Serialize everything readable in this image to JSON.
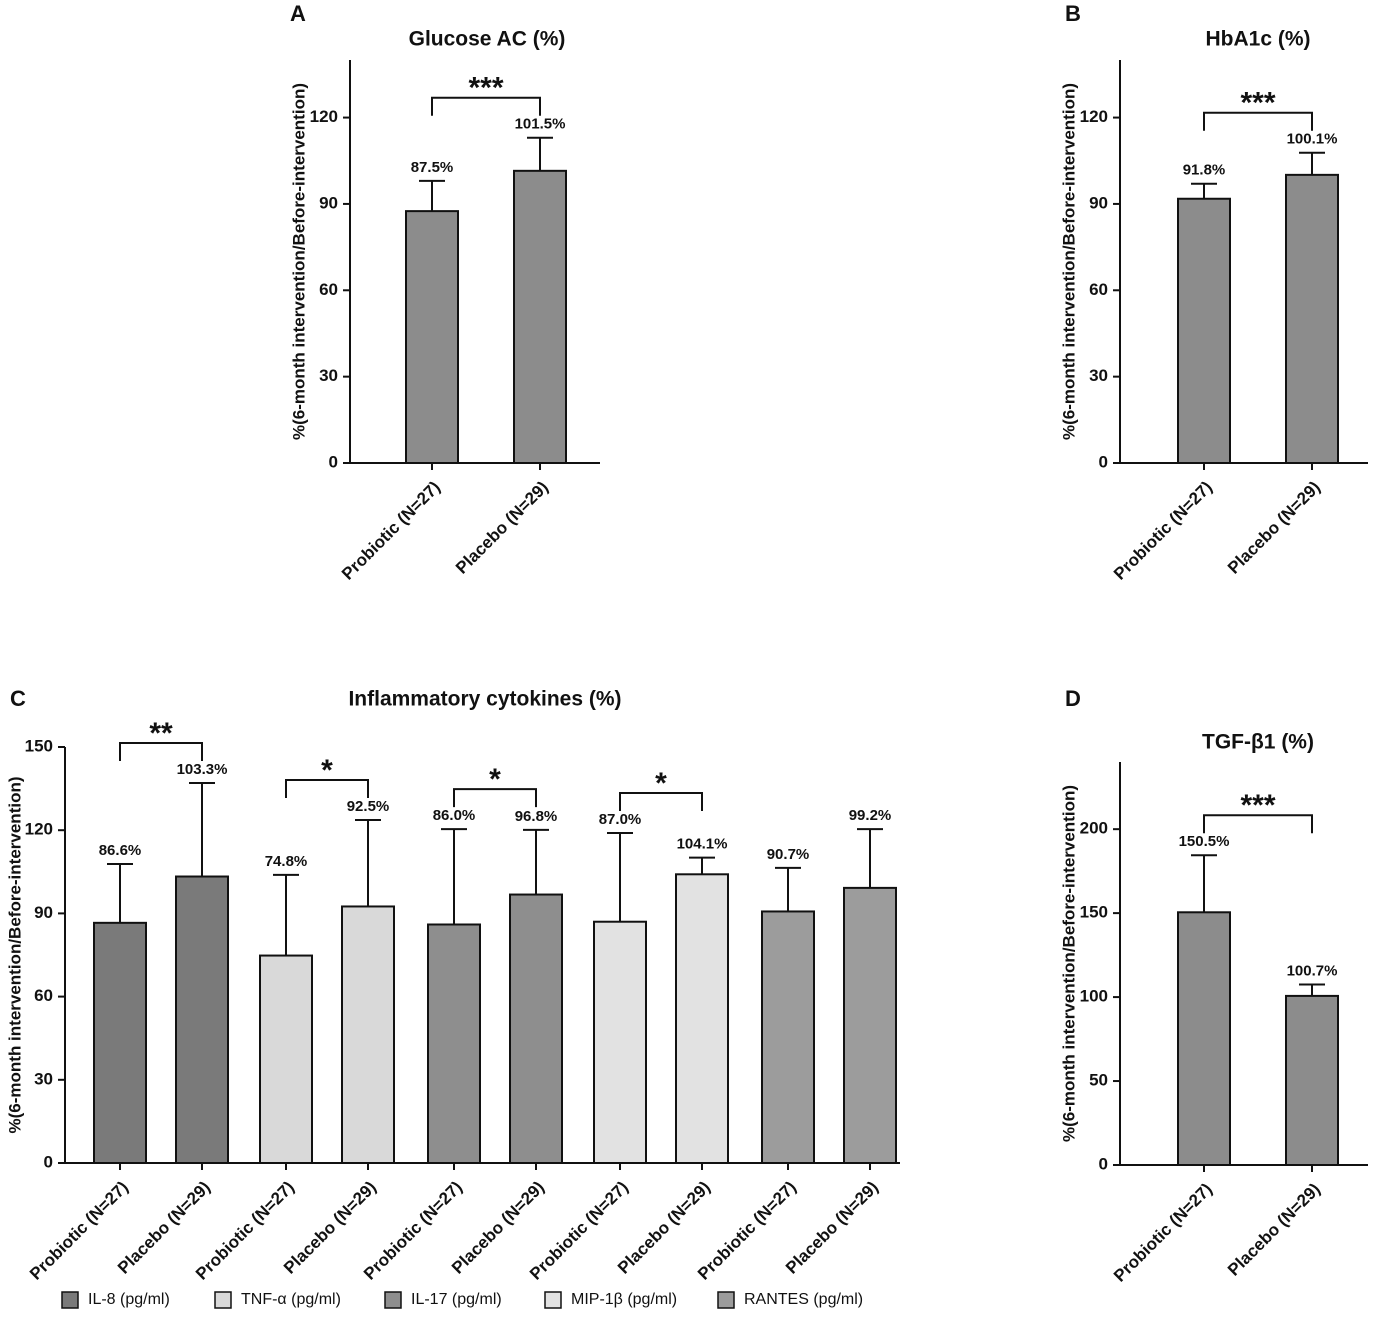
{
  "chart_data": [
    {
      "type": "bar",
      "panel": "A",
      "title": "Glucose AC (%)",
      "ylabel": "%(6-month intervention/Before-intervention)",
      "categories": [
        "Probiotic (N=27)",
        "Placebo (N=29)"
      ],
      "values": [
        87.5,
        101.5
      ],
      "errors": [
        10.5,
        11.5
      ],
      "value_labels": [
        "87.5%",
        "101.5%"
      ],
      "significance": "***",
      "color": "#8c8c8c",
      "ylim": [
        0,
        140
      ],
      "yticks": [
        0,
        30,
        60,
        90,
        120
      ]
    },
    {
      "type": "bar",
      "panel": "B",
      "title": "HbA1c (%)",
      "ylabel": "%(6-month intervention/Before-intervention)",
      "categories": [
        "Probiotic (N=27)",
        "Placebo (N=29)"
      ],
      "values": [
        91.8,
        100.1
      ],
      "errors": [
        5.2,
        7.7
      ],
      "value_labels": [
        "91.8%",
        "100.1%"
      ],
      "significance": "***",
      "color": "#8c8c8c",
      "ylim": [
        0,
        140
      ],
      "yticks": [
        0,
        30,
        60,
        90,
        120
      ]
    },
    {
      "type": "grouped_bar",
      "panel": "C",
      "title": "Inflammatory cytokines (%)",
      "ylabel": "%(6-month intervention/Before-intervention)",
      "categories": [
        "Probiotic (N=27)",
        "Placebo (N=29)"
      ],
      "series": [
        {
          "name": "IL-8 (pg/ml)",
          "color": "#7a7a7a",
          "values": [
            86.6,
            103.3
          ],
          "errors": [
            21.2,
            33.7
          ],
          "value_labels": [
            "86.6%",
            "103.3%"
          ],
          "significance": "**"
        },
        {
          "name": "TNF-α (pg/ml)",
          "color": "#d9d9d9",
          "values": [
            74.8,
            92.5
          ],
          "errors": [
            29.1,
            31.2
          ],
          "value_labels": [
            "74.8%",
            "92.5%"
          ],
          "significance": "*"
        },
        {
          "name": "IL-17 (pg/ml)",
          "color": "#8e8e8e",
          "values": [
            86.0,
            96.8
          ],
          "errors": [
            34.4,
            23.3
          ],
          "value_labels": [
            "86.0%",
            "96.8%"
          ],
          "significance": "*"
        },
        {
          "name": "MIP-1β (pg/ml)",
          "color": "#e2e2e2",
          "values": [
            87.0,
            104.1
          ],
          "errors": [
            32.0,
            6.0
          ],
          "value_labels": [
            "87.0%",
            "104.1%"
          ],
          "significance": "*"
        },
        {
          "name": "RANTES (pg/ml)",
          "color": "#9c9c9c",
          "values": [
            90.7,
            99.2
          ],
          "errors": [
            15.7,
            21.2
          ],
          "value_labels": [
            "90.7%",
            "99.2%"
          ]
        }
      ],
      "ylim": [
        0,
        150
      ],
      "yticks": [
        0,
        30,
        60,
        90,
        120,
        150
      ],
      "legend": "bottom"
    },
    {
      "type": "bar",
      "panel": "D",
      "title": "TGF-β1 (%)",
      "ylabel": "%(6-month intervention/Before-intervention)",
      "categories": [
        "Probiotic (N=27)",
        "Placebo (N=29)"
      ],
      "values": [
        150.5,
        100.7
      ],
      "errors": [
        34.0,
        6.8
      ],
      "value_labels": [
        "150.5%",
        "100.7%"
      ],
      "significance": "***",
      "color": "#8c8c8c",
      "ylim": [
        0,
        240
      ],
      "yticks": [
        0,
        50,
        100,
        150,
        200
      ]
    }
  ]
}
